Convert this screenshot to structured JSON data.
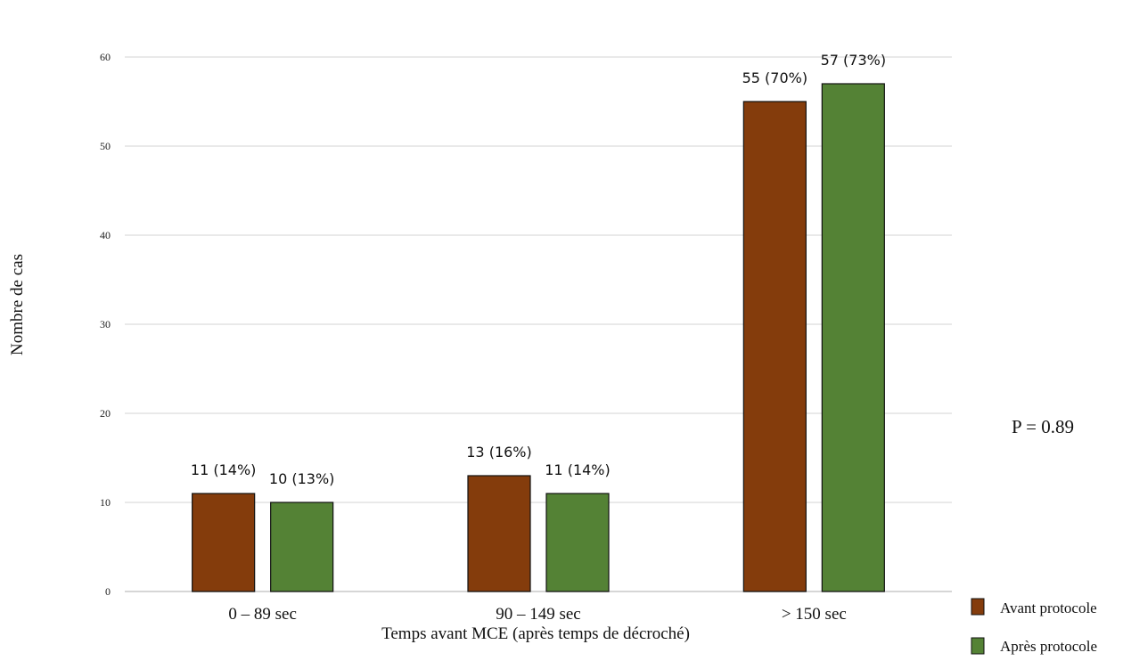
{
  "chart_data": {
    "type": "bar",
    "title": "",
    "xlabel": "Temps avant MCE (après temps de décroché)",
    "ylabel": "Nombre de cas",
    "ylim": [
      0,
      60
    ],
    "yticks": [
      0,
      10,
      20,
      30,
      40,
      50,
      60
    ],
    "grid": true,
    "legend_position": "bottom-right",
    "categories": [
      "0 – 89 sec",
      "90 – 149 sec",
      "> 150 sec"
    ],
    "series": [
      {
        "name": "Avant protocole",
        "color": "#843c0c",
        "values": [
          11,
          13,
          55
        ],
        "labels": [
          "11 (14%)",
          "13 (16%)",
          "55 (70%)"
        ]
      },
      {
        "name": "Après protocole",
        "color": "#548235",
        "values": [
          10,
          11,
          57
        ],
        "labels": [
          "10 (13%)",
          "11 (14%)",
          "57 (73%)"
        ]
      }
    ],
    "annotation": "P = 0.89"
  }
}
